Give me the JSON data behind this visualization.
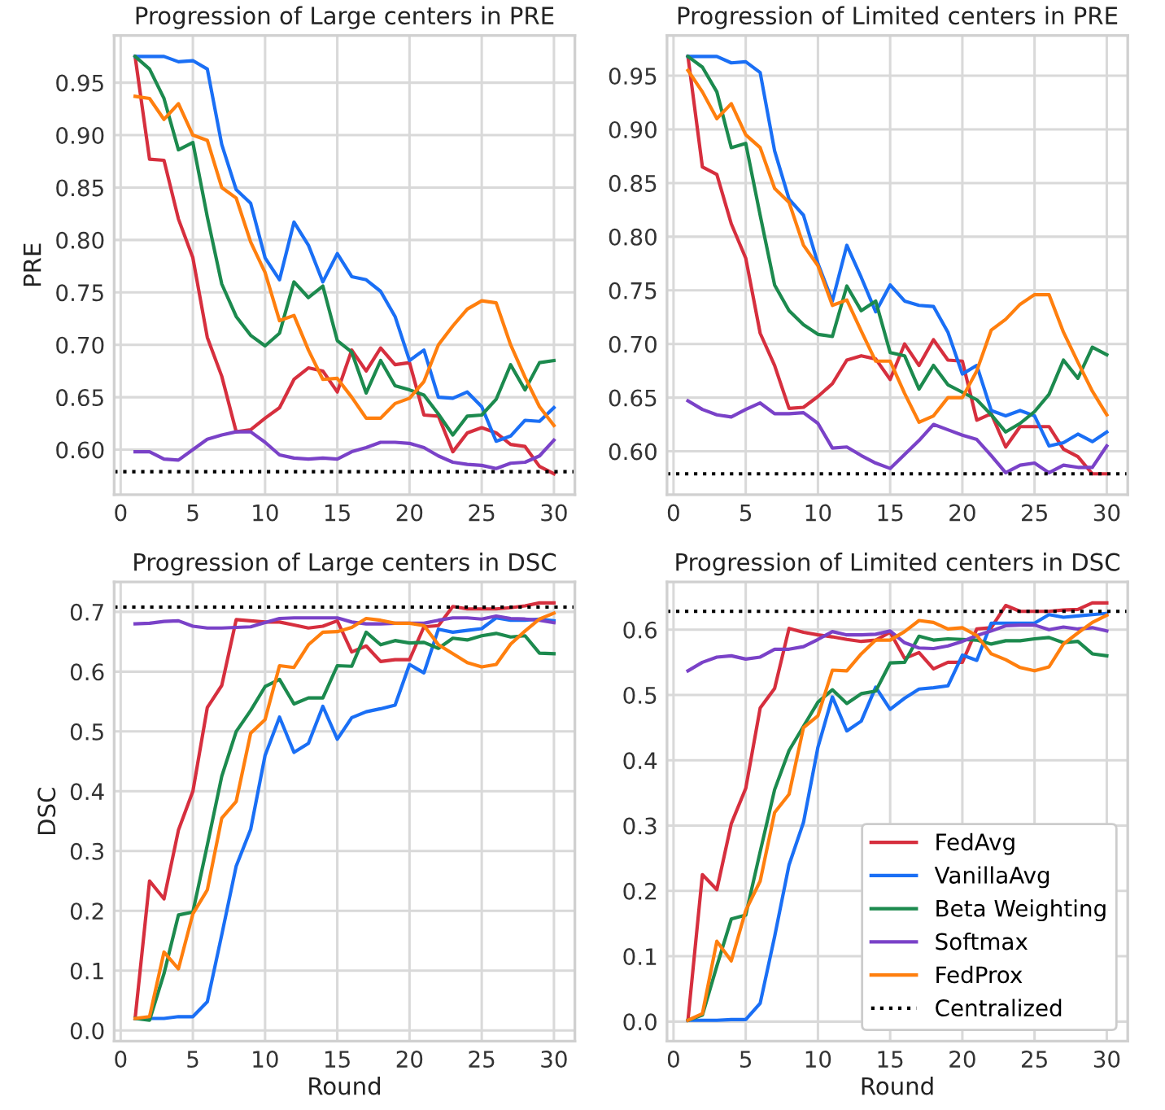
{
  "chart_data": [
    {
      "type": "line",
      "title": "Progression of Large centers in PRE",
      "ylabel": "PRE",
      "x": [
        1,
        2,
        3,
        4,
        5,
        6,
        7,
        8,
        9,
        10,
        11,
        12,
        13,
        14,
        15,
        16,
        17,
        18,
        19,
        20,
        21,
        22,
        23,
        24,
        25,
        26,
        27,
        28,
        29,
        30
      ],
      "xlim": [
        -0.45,
        31.45
      ],
      "xticks": [
        0,
        5,
        10,
        15,
        20,
        25,
        30
      ],
      "ylim": [
        0.557,
        0.995
      ],
      "yticks": [
        {
          "value": 0.6,
          "label": "0.60"
        },
        {
          "value": 0.65,
          "label": "0.65"
        },
        {
          "value": 0.7,
          "label": "0.70"
        },
        {
          "value": 0.75,
          "label": "0.75"
        },
        {
          "value": 0.8,
          "label": "0.80"
        },
        {
          "value": 0.85,
          "label": "0.85"
        },
        {
          "value": 0.9,
          "label": "0.90"
        },
        {
          "value": 0.95,
          "label": "0.95"
        }
      ],
      "grid": true,
      "legend": false,
      "series": [
        {
          "color": "#d62f3e",
          "values": [
            0.975,
            0.877,
            0.876,
            0.82,
            0.783,
            0.707,
            0.67,
            0.617,
            0.619,
            0.63,
            0.64,
            0.667,
            0.678,
            0.675,
            0.655,
            0.695,
            0.675,
            0.697,
            0.681,
            0.683,
            0.633,
            0.632,
            0.598,
            0.616,
            0.621,
            0.616,
            0.605,
            0.603,
            0.584,
            0.577
          ]
        },
        {
          "color": "#1a6ff5",
          "values": [
            0.975,
            0.975,
            0.975,
            0.97,
            0.971,
            0.963,
            0.891,
            0.848,
            0.835,
            0.783,
            0.762,
            0.817,
            0.795,
            0.76,
            0.787,
            0.765,
            0.762,
            0.751,
            0.727,
            0.685,
            0.695,
            0.65,
            0.649,
            0.655,
            0.641,
            0.608,
            0.613,
            0.628,
            0.627,
            0.64
          ]
        },
        {
          "color": "#1c8a4e",
          "values": [
            0.975,
            0.963,
            0.935,
            0.886,
            0.893,
            0.822,
            0.758,
            0.727,
            0.709,
            0.699,
            0.711,
            0.76,
            0.745,
            0.756,
            0.704,
            0.693,
            0.654,
            0.685,
            0.661,
            0.657,
            0.652,
            0.634,
            0.614,
            0.632,
            0.633,
            0.648,
            0.681,
            0.657,
            0.683,
            0.685
          ]
        },
        {
          "color": "#7a42c8",
          "values": [
            0.598,
            0.598,
            0.591,
            0.59,
            0.6,
            0.61,
            0.614,
            0.617,
            0.617,
            0.607,
            0.595,
            0.592,
            0.591,
            0.592,
            0.591,
            0.598,
            0.602,
            0.607,
            0.607,
            0.606,
            0.602,
            0.594,
            0.588,
            0.586,
            0.585,
            0.582,
            0.587,
            0.588,
            0.594,
            0.609
          ]
        },
        {
          "color": "#ff7f0e",
          "values": [
            0.937,
            0.935,
            0.915,
            0.93,
            0.9,
            0.895,
            0.85,
            0.84,
            0.798,
            0.769,
            0.723,
            0.728,
            0.695,
            0.667,
            0.668,
            0.65,
            0.63,
            0.63,
            0.644,
            0.649,
            0.665,
            0.7,
            0.718,
            0.734,
            0.742,
            0.74,
            0.7,
            0.669,
            0.641,
            0.623
          ]
        }
      ],
      "ref_lines": [
        {
          "axis": "y",
          "value": 0.579,
          "color": "#000000",
          "line_style": "dotted"
        }
      ]
    },
    {
      "type": "line",
      "title": "Progression of Limited centers in PRE",
      "x": [
        1,
        2,
        3,
        4,
        5,
        6,
        7,
        8,
        9,
        10,
        11,
        12,
        13,
        14,
        15,
        16,
        17,
        18,
        19,
        20,
        21,
        22,
        23,
        24,
        25,
        26,
        27,
        28,
        29,
        30
      ],
      "xlim": [
        -0.45,
        31.45
      ],
      "xticks": [
        0,
        5,
        10,
        15,
        20,
        25,
        30
      ],
      "ylim": [
        0.5595,
        0.9875
      ],
      "yticks": [
        {
          "value": 0.6,
          "label": "0.60"
        },
        0.65,
        {
          "value": 0.7,
          "label": "0.70"
        },
        0.75,
        {
          "value": 0.8,
          "label": "0.80"
        },
        0.85,
        {
          "value": 0.9,
          "label": "0.90"
        },
        0.95
      ],
      "grid": true,
      "legend": false,
      "series": [
        {
          "color": "#d62f3e",
          "values": [
            0.968,
            0.865,
            0.858,
            0.812,
            0.78,
            0.71,
            0.68,
            0.64,
            0.641,
            0.651,
            0.663,
            0.685,
            0.689,
            0.686,
            0.667,
            0.7,
            0.68,
            0.704,
            0.685,
            0.684,
            0.629,
            0.635,
            0.604,
            0.623,
            0.623,
            0.623,
            0.602,
            0.595,
            0.579,
            0.579
          ]
        },
        {
          "color": "#1a6ff5",
          "values": [
            0.968,
            0.968,
            0.968,
            0.962,
            0.963,
            0.953,
            0.88,
            0.835,
            0.82,
            0.775,
            0.74,
            0.792,
            0.762,
            0.73,
            0.755,
            0.74,
            0.736,
            0.735,
            0.711,
            0.672,
            0.68,
            0.638,
            0.633,
            0.638,
            0.633,
            0.605,
            0.608,
            0.616,
            0.609,
            0.618
          ]
        },
        {
          "color": "#1c8a4e",
          "values": [
            0.968,
            0.958,
            0.935,
            0.883,
            0.887,
            0.82,
            0.755,
            0.731,
            0.718,
            0.709,
            0.707,
            0.754,
            0.731,
            0.74,
            0.692,
            0.689,
            0.658,
            0.68,
            0.662,
            0.655,
            0.648,
            0.634,
            0.618,
            0.626,
            0.637,
            0.653,
            0.685,
            0.668,
            0.697,
            0.69
          ]
        },
        {
          "color": "#7a42c8",
          "values": [
            0.647,
            0.639,
            0.634,
            0.632,
            0.639,
            0.645,
            0.635,
            0.635,
            0.636,
            0.626,
            0.603,
            0.604,
            0.596,
            0.589,
            0.584,
            0.597,
            0.61,
            0.625,
            0.62,
            0.615,
            0.611,
            0.596,
            0.58,
            0.587,
            0.589,
            0.58,
            0.587,
            0.585,
            0.585,
            0.605
          ]
        },
        {
          "color": "#ff7f0e",
          "values": [
            0.955,
            0.935,
            0.91,
            0.924,
            0.895,
            0.883,
            0.845,
            0.832,
            0.792,
            0.773,
            0.736,
            0.741,
            0.712,
            0.684,
            0.684,
            0.654,
            0.627,
            0.633,
            0.65,
            0.65,
            0.675,
            0.713,
            0.723,
            0.737,
            0.746,
            0.746,
            0.711,
            0.683,
            0.656,
            0.634
          ]
        }
      ],
      "ref_lines": [
        {
          "axis": "y",
          "value": 0.579,
          "color": "#000000",
          "line_style": "dotted"
        }
      ]
    },
    {
      "type": "line",
      "title": "Progression of Large centers in DSC",
      "xlabel": "Round",
      "ylabel": "DSC",
      "x": [
        1,
        2,
        3,
        4,
        5,
        6,
        7,
        8,
        9,
        10,
        11,
        12,
        13,
        14,
        15,
        16,
        17,
        18,
        19,
        20,
        21,
        22,
        23,
        24,
        25,
        26,
        27,
        28,
        29,
        30
      ],
      "xlim": [
        -0.45,
        31.45
      ],
      "xticks": [
        0,
        5,
        10,
        15,
        20,
        25,
        30
      ],
      "ylim": [
        -0.018,
        0.75
      ],
      "yticks": [
        {
          "value": 0,
          "label": "0.0"
        },
        0.1,
        0.2,
        0.3,
        0.4,
        0.5,
        0.6,
        0.7
      ],
      "grid": true,
      "legend": false,
      "series": [
        {
          "color": "#d62f3e",
          "values": [
            0.02,
            0.25,
            0.22,
            0.335,
            0.4,
            0.54,
            0.577,
            0.687,
            0.685,
            0.683,
            0.683,
            0.678,
            0.673,
            0.676,
            0.685,
            0.633,
            0.643,
            0.617,
            0.62,
            0.62,
            0.675,
            0.677,
            0.709,
            0.705,
            0.705,
            0.705,
            0.707,
            0.71,
            0.715,
            0.715
          ]
        },
        {
          "color": "#1a6ff5",
          "values": [
            0.02,
            0.02,
            0.02,
            0.023,
            0.023,
            0.048,
            0.16,
            0.275,
            0.336,
            0.46,
            0.524,
            0.465,
            0.48,
            0.542,
            0.487,
            0.523,
            0.533,
            0.538,
            0.544,
            0.612,
            0.598,
            0.671,
            0.666,
            0.669,
            0.672,
            0.69,
            0.686,
            0.686,
            0.688,
            0.685
          ]
        },
        {
          "color": "#1c8a4e",
          "values": [
            0.02,
            0.017,
            0.095,
            0.193,
            0.198,
            0.31,
            0.425,
            0.5,
            0.535,
            0.575,
            0.587,
            0.546,
            0.556,
            0.556,
            0.61,
            0.609,
            0.666,
            0.645,
            0.652,
            0.648,
            0.649,
            0.639,
            0.656,
            0.653,
            0.66,
            0.664,
            0.658,
            0.66,
            0.631,
            0.63
          ]
        },
        {
          "color": "#7a42c8",
          "values": [
            0.68,
            0.681,
            0.684,
            0.685,
            0.676,
            0.673,
            0.673,
            0.674,
            0.675,
            0.682,
            0.689,
            0.69,
            0.69,
            0.69,
            0.69,
            0.683,
            0.68,
            0.68,
            0.681,
            0.681,
            0.681,
            0.686,
            0.69,
            0.69,
            0.688,
            0.693,
            0.689,
            0.688,
            0.686,
            0.682
          ]
        },
        {
          "color": "#ff7f0e",
          "values": [
            0.02,
            0.023,
            0.131,
            0.103,
            0.195,
            0.235,
            0.355,
            0.383,
            0.497,
            0.52,
            0.61,
            0.607,
            0.645,
            0.666,
            0.667,
            0.674,
            0.689,
            0.686,
            0.681,
            0.681,
            0.677,
            0.645,
            0.63,
            0.615,
            0.608,
            0.612,
            0.646,
            0.668,
            0.688,
            0.698
          ]
        }
      ],
      "ref_lines": [
        {
          "axis": "y",
          "value": 0.708,
          "color": "#000000",
          "line_style": "dotted"
        }
      ]
    },
    {
      "type": "line",
      "title": "Progression of Limited centers in DSC",
      "xlabel": "Round",
      "x": [
        1,
        2,
        3,
        4,
        5,
        6,
        7,
        8,
        9,
        10,
        11,
        12,
        13,
        14,
        15,
        16,
        17,
        18,
        19,
        20,
        21,
        22,
        23,
        24,
        25,
        26,
        27,
        28,
        29,
        30
      ],
      "xlim": [
        -0.45,
        31.45
      ],
      "xticks": [
        0,
        5,
        10,
        15,
        20,
        25,
        30
      ],
      "ylim": [
        -0.03,
        0.673
      ],
      "yticks": [
        {
          "value": 0,
          "label": "0.0"
        },
        0.1,
        0.2,
        0.3,
        0.4,
        0.5,
        0.6
      ],
      "grid": true,
      "legend": "bottom right",
      "series": [
        {
          "name": "FedAvg",
          "color": "#d62f3e",
          "values": [
            0.002,
            0.225,
            0.202,
            0.303,
            0.357,
            0.48,
            0.51,
            0.602,
            0.596,
            0.592,
            0.589,
            0.585,
            0.582,
            0.584,
            0.596,
            0.556,
            0.565,
            0.54,
            0.55,
            0.55,
            0.601,
            0.603,
            0.637,
            0.628,
            0.628,
            0.628,
            0.63,
            0.631,
            0.641,
            0.641
          ]
        },
        {
          "name": "VanillaAvg",
          "color": "#1a6ff5",
          "values": [
            0.002,
            0.002,
            0.002,
            0.003,
            0.003,
            0.028,
            0.13,
            0.24,
            0.305,
            0.42,
            0.497,
            0.445,
            0.46,
            0.512,
            0.478,
            0.495,
            0.509,
            0.511,
            0.514,
            0.561,
            0.553,
            0.61,
            0.61,
            0.61,
            0.61,
            0.623,
            0.619,
            0.621,
            0.623,
            0.625
          ]
        },
        {
          "name": "Beta Weighting",
          "color": "#1c8a4e",
          "values": [
            0.002,
            0.01,
            0.085,
            0.157,
            0.163,
            0.26,
            0.355,
            0.415,
            0.452,
            0.489,
            0.508,
            0.487,
            0.502,
            0.506,
            0.549,
            0.55,
            0.59,
            0.584,
            0.586,
            0.585,
            0.584,
            0.578,
            0.583,
            0.583,
            0.586,
            0.588,
            0.58,
            0.582,
            0.563,
            0.56
          ]
        },
        {
          "name": "Softmax",
          "color": "#7a42c8",
          "values": [
            0.537,
            0.55,
            0.558,
            0.56,
            0.555,
            0.558,
            0.57,
            0.57,
            0.574,
            0.585,
            0.597,
            0.592,
            0.592,
            0.593,
            0.598,
            0.58,
            0.572,
            0.571,
            0.575,
            0.582,
            0.591,
            0.598,
            0.606,
            0.607,
            0.607,
            0.6,
            0.604,
            0.601,
            0.603,
            0.598
          ]
        },
        {
          "name": "FedProx",
          "color": "#ff7f0e",
          "values": [
            0.002,
            0.012,
            0.123,
            0.093,
            0.17,
            0.215,
            0.32,
            0.348,
            0.45,
            0.468,
            0.538,
            0.537,
            0.563,
            0.584,
            0.584,
            0.597,
            0.614,
            0.611,
            0.601,
            0.603,
            0.591,
            0.563,
            0.554,
            0.542,
            0.537,
            0.543,
            0.578,
            0.595,
            0.611,
            0.622
          ]
        }
      ],
      "ref_lines": [
        {
          "axis": "y",
          "value": 0.628,
          "label": "Centralized",
          "color": "#000000",
          "line_style": "dotted"
        }
      ]
    }
  ]
}
